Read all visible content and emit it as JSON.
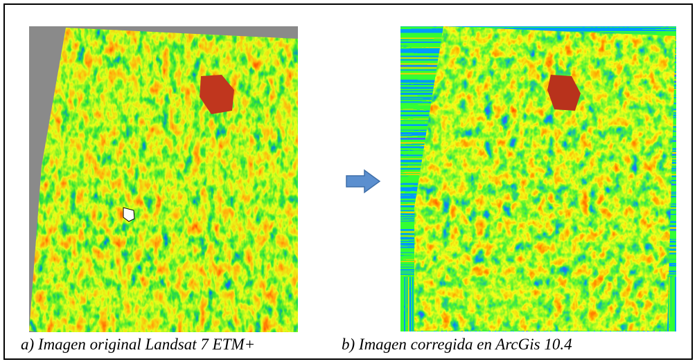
{
  "captions": {
    "left": "a) Imagen original Landsat 7 ETM+",
    "right": "b) Imagen corregida en ArcGis 10.4"
  }
}
